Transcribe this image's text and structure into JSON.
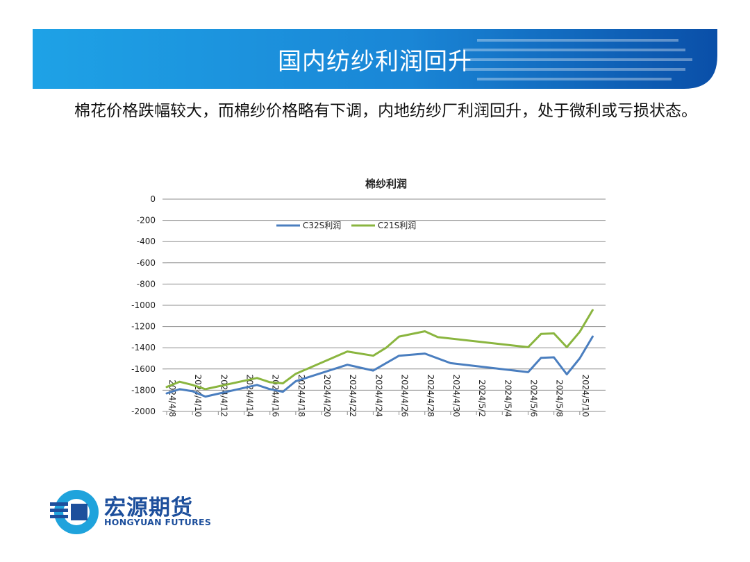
{
  "slide": {
    "title": "国内纺纱利润回升",
    "text": "棉花价格跌幅较大，而棉纱价格略有下调，内地纺纱厂利润回升，处于微利或亏损状态。"
  },
  "logo": {
    "name_cn": "宏源期货",
    "name_en": "HONGYUAN FUTURES"
  },
  "colors": {
    "banner_dark": "#0a4fa8",
    "banner_light": "#1e9ae0",
    "logo_blue": "#1d4f9c",
    "logo_cyan": "#1fa3dc"
  },
  "chart_data": {
    "type": "line",
    "title": "棉纱利润",
    "xlabel": "",
    "ylabel": "",
    "ylim": [
      -2000,
      0
    ],
    "yticks": [
      0,
      -200,
      -400,
      -600,
      -800,
      -1000,
      -1200,
      -1400,
      -1600,
      -1800,
      -2000
    ],
    "xticks": [
      "2024/4/8",
      "2024/4/10",
      "2024/4/12",
      "2024/4/14",
      "2024/4/16",
      "2024/4/18",
      "2024/4/20",
      "2024/4/22",
      "2024/4/24",
      "2024/4/26",
      "2024/4/28",
      "2024/4/30",
      "2024/5/2",
      "2024/5/4",
      "2024/5/6",
      "2024/5/8",
      "2024/5/10"
    ],
    "grid": true,
    "legend_position": "top-center",
    "series": [
      {
        "name": "C32S利润",
        "color": "#4a7ebf",
        "points": [
          [
            "2024/4/8",
            -1830
          ],
          [
            "2024/4/9",
            -1790
          ],
          [
            "2024/4/10",
            -1810
          ],
          [
            "2024/4/11",
            -1860
          ],
          [
            "2024/4/15",
            -1750
          ],
          [
            "2024/4/16",
            -1790
          ],
          [
            "2024/4/17",
            -1815
          ],
          [
            "2024/4/18",
            -1715
          ],
          [
            "2024/4/22",
            -1560
          ],
          [
            "2024/4/24",
            -1615
          ],
          [
            "2024/4/26",
            -1475
          ],
          [
            "2024/4/28",
            -1455
          ],
          [
            "2024/4/30",
            -1545
          ],
          [
            "2024/5/6",
            -1630
          ],
          [
            "2024/5/7",
            -1495
          ],
          [
            "2024/5/8",
            -1490
          ],
          [
            "2024/5/9",
            -1650
          ],
          [
            "2024/5/10",
            -1500
          ],
          [
            "2024/5/11",
            -1295
          ]
        ]
      },
      {
        "name": "C21S利润",
        "color": "#8ab53f",
        "points": [
          [
            "2024/4/8",
            -1770
          ],
          [
            "2024/4/9",
            -1720
          ],
          [
            "2024/4/10",
            -1750
          ],
          [
            "2024/4/11",
            -1790
          ],
          [
            "2024/4/15",
            -1685
          ],
          [
            "2024/4/16",
            -1725
          ],
          [
            "2024/4/17",
            -1735
          ],
          [
            "2024/4/18",
            -1645
          ],
          [
            "2024/4/22",
            -1435
          ],
          [
            "2024/4/24",
            -1475
          ],
          [
            "2024/4/25",
            -1400
          ],
          [
            "2024/4/26",
            -1295
          ],
          [
            "2024/4/28",
            -1245
          ],
          [
            "2024/4/29",
            -1300
          ],
          [
            "2024/5/6",
            -1395
          ],
          [
            "2024/5/7",
            -1270
          ],
          [
            "2024/5/8",
            -1265
          ],
          [
            "2024/5/9",
            -1395
          ],
          [
            "2024/5/10",
            -1250
          ],
          [
            "2024/5/11",
            -1045
          ]
        ]
      }
    ]
  }
}
